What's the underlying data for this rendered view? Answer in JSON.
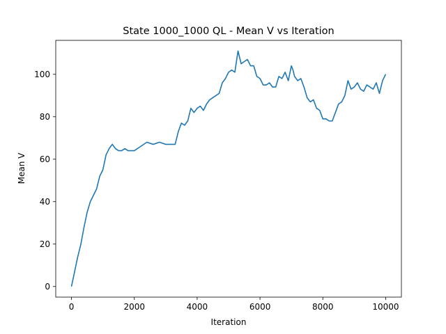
{
  "chart_data": {
    "type": "line",
    "title": "State 1000_1000 QL - Mean V vs Iteration",
    "xlabel": "Iteration",
    "ylabel": "Mean V",
    "xlim": [
      -500,
      10500
    ],
    "ylim": [
      -5,
      116
    ],
    "xticks": [
      0,
      2000,
      4000,
      6000,
      8000,
      10000
    ],
    "yticks": [
      0,
      20,
      40,
      60,
      80,
      100
    ],
    "grid": false,
    "series": [
      {
        "color": "#1f77b4",
        "x": [
          0,
          100,
          200,
          300,
          400,
          500,
          600,
          700,
          800,
          900,
          1000,
          1100,
          1200,
          1300,
          1400,
          1500,
          1600,
          1700,
          1800,
          1900,
          2000,
          2200,
          2400,
          2600,
          2800,
          3000,
          3200,
          3300,
          3400,
          3500,
          3600,
          3700,
          3800,
          3900,
          4000,
          4100,
          4200,
          4300,
          4400,
          4500,
          4600,
          4700,
          4800,
          4900,
          5000,
          5100,
          5200,
          5300,
          5350,
          5400,
          5500,
          5600,
          5700,
          5800,
          5900,
          6000,
          6100,
          6200,
          6300,
          6400,
          6500,
          6600,
          6700,
          6800,
          6900,
          7000,
          7050,
          7100,
          7200,
          7300,
          7400,
          7500,
          7600,
          7700,
          7800,
          7900,
          8000,
          8100,
          8200,
          8300,
          8400,
          8500,
          8600,
          8700,
          8800,
          8900,
          9000,
          9100,
          9200,
          9300,
          9400,
          9500,
          9600,
          9700,
          9800,
          9900,
          10000
        ],
        "y": [
          0,
          7,
          14,
          20,
          28,
          35,
          40,
          43,
          46,
          52,
          55,
          62,
          65,
          67,
          65,
          64,
          64,
          65,
          64,
          64,
          64,
          66,
          68,
          67,
          68,
          67,
          67,
          67,
          73,
          77,
          76,
          78,
          84,
          82,
          84,
          85,
          83,
          86,
          88,
          89,
          90,
          91,
          96,
          98,
          101,
          102,
          101,
          111,
          108,
          105,
          106,
          107,
          104,
          104,
          99,
          98,
          95,
          95,
          96,
          94,
          94,
          99,
          98,
          101,
          97,
          104,
          102,
          99,
          97,
          98,
          94,
          89,
          87,
          88,
          84,
          83,
          79,
          79,
          78,
          78,
          82,
          86,
          87,
          90,
          97,
          93,
          94,
          96,
          93,
          92,
          95,
          94,
          93,
          96,
          91,
          97,
          100
        ]
      }
    ]
  }
}
